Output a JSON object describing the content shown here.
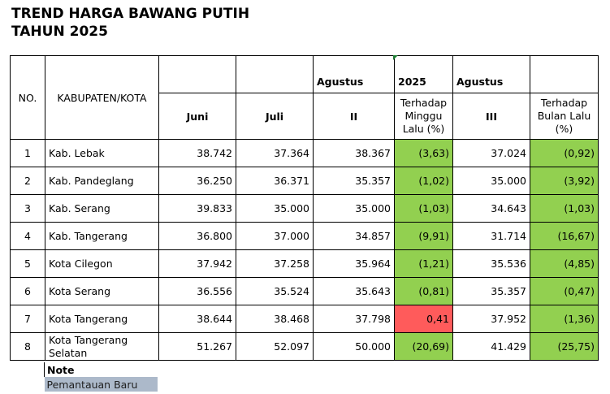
{
  "title": {
    "line1": "TREND HARGA BAWANG PUTIH",
    "line2": "TAHUN 2025"
  },
  "header": {
    "no": "NO.",
    "kab": "KABUPATEN/KOTA",
    "juni": "Juni",
    "juli": "Juli",
    "agustus_a": "Agustus",
    "year": "2025",
    "agustus_b": "Agustus",
    "week_ii": "II",
    "week_iii": "III",
    "vs_week": "Terhadap Minggu Lalu (%)",
    "vs_month": "Terhadap Bulan Lalu (%)"
  },
  "rows": [
    {
      "no": "1",
      "name": "Kab. Lebak",
      "juni": "38.742",
      "juli": "37.364",
      "ii": "38.367",
      "wk": "(3,63)",
      "iii": "37.024",
      "mo": "(0,92)"
    },
    {
      "no": "2",
      "name": "Kab. Pandeglang",
      "juni": "36.250",
      "juli": "36.371",
      "ii": "35.357",
      "wk": "(1,02)",
      "iii": "35.000",
      "mo": "(3,92)"
    },
    {
      "no": "3",
      "name": "Kab. Serang",
      "juni": "39.833",
      "juli": "35.000",
      "ii": "35.000",
      "wk": "(1,03)",
      "iii": "34.643",
      "mo": "(1,03)"
    },
    {
      "no": "4",
      "name": "Kab. Tangerang",
      "juni": "36.800",
      "juli": "37.000",
      "ii": "34.857",
      "wk": "(9,91)",
      "iii": "31.714",
      "mo": "(16,67)"
    },
    {
      "no": "5",
      "name": "Kota Cilegon",
      "juni": "37.942",
      "juli": "37.258",
      "ii": "35.964",
      "wk": "(1,21)",
      "iii": "35.536",
      "mo": "(4,85)"
    },
    {
      "no": "6",
      "name": "Kota Serang",
      "juni": "36.556",
      "juli": "35.524",
      "ii": "35.643",
      "wk": "(0,81)",
      "iii": "35.357",
      "mo": "(0,47)"
    },
    {
      "no": "7",
      "name": "Kota Tangerang",
      "juni": "38.644",
      "juli": "38.468",
      "ii": "37.798",
      "wk": "0,41",
      "iii": "37.952",
      "mo": "(1,36)"
    },
    {
      "no": "8",
      "name": "Kota Tangerang Selatan",
      "juni": "51.267",
      "juli": "52.097",
      "ii": "50.000",
      "wk": "(20,69)",
      "iii": "41.429",
      "mo": "(25,75)"
    }
  ],
  "note": {
    "label": "Note",
    "item": "Pemantauan Baru"
  },
  "colors": {
    "decrease": "#92d050",
    "increase": "#ff5b5b",
    "note_fill": "#acb9ca"
  }
}
